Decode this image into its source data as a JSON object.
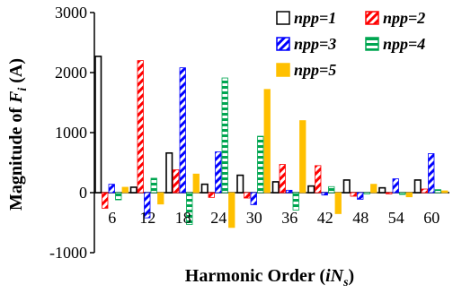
{
  "chart_data": {
    "type": "bar",
    "xlabel_parts": [
      "Harmonic Order (",
      "iN",
      "s",
      ")"
    ],
    "ylabel_parts": [
      "Magnitude of ",
      "F",
      "i",
      " (A)"
    ],
    "ylim": [
      -1000,
      3000
    ],
    "yticks": [
      "-1000",
      "0",
      "1000",
      "2000",
      "3000"
    ],
    "ytick_values": [
      -1000,
      0,
      1000,
      2000,
      3000
    ],
    "grid": false,
    "legend_position": "top-right",
    "categories": [
      "6",
      "12",
      "18",
      "24",
      "30",
      "36",
      "42",
      "48",
      "54",
      "60"
    ],
    "series": [
      {
        "name": "npp=1",
        "color": "#000000",
        "pattern": "hollow",
        "values": [
          [
            2270,
            0
          ],
          [
            90,
            0
          ],
          [
            660,
            0
          ],
          [
            140,
            0
          ],
          [
            290,
            0
          ],
          [
            180,
            0
          ],
          [
            110,
            0
          ],
          [
            210,
            0
          ],
          [
            80,
            0
          ],
          [
            210,
            0
          ]
        ]
      },
      {
        "name": "npp=2",
        "color": "#ff0000",
        "pattern": "hatch",
        "values": [
          [
            0,
            -260
          ],
          [
            2200,
            0
          ],
          [
            380,
            0
          ],
          [
            0,
            -80
          ],
          [
            0,
            -90
          ],
          [
            470,
            0
          ],
          [
            450,
            0
          ],
          [
            0,
            -60
          ],
          [
            0,
            -20
          ],
          [
            60,
            0
          ]
        ]
      },
      {
        "name": "npp=3",
        "color": "#0000ff",
        "pattern": "hatch",
        "values": [
          [
            140,
            0
          ],
          [
            0,
            -420
          ],
          [
            2080,
            0
          ],
          [
            680,
            0
          ],
          [
            0,
            -200
          ],
          [
            40,
            0
          ],
          [
            0,
            -40
          ],
          [
            0,
            -110
          ],
          [
            230,
            0
          ],
          [
            650,
            0
          ]
        ]
      },
      {
        "name": "npp=4",
        "color": "#00a651",
        "pattern": "dots",
        "values": [
          [
            0,
            -120
          ],
          [
            240,
            0
          ],
          [
            0,
            -530
          ],
          [
            1910,
            0
          ],
          [
            940,
            0
          ],
          [
            0,
            -290
          ],
          [
            100,
            0
          ],
          [
            0,
            -20
          ],
          [
            0,
            -30
          ],
          [
            50,
            0
          ]
        ]
      },
      {
        "name": "npp=5",
        "color": "#ffc000",
        "pattern": "solid",
        "values": [
          [
            90,
            0
          ],
          [
            0,
            -190
          ],
          [
            310,
            0
          ],
          [
            0,
            -580
          ],
          [
            1720,
            0
          ],
          [
            1200,
            0
          ],
          [
            0,
            -350
          ],
          [
            140,
            0
          ],
          [
            0,
            -70
          ],
          [
            30,
            0
          ]
        ]
      }
    ]
  }
}
